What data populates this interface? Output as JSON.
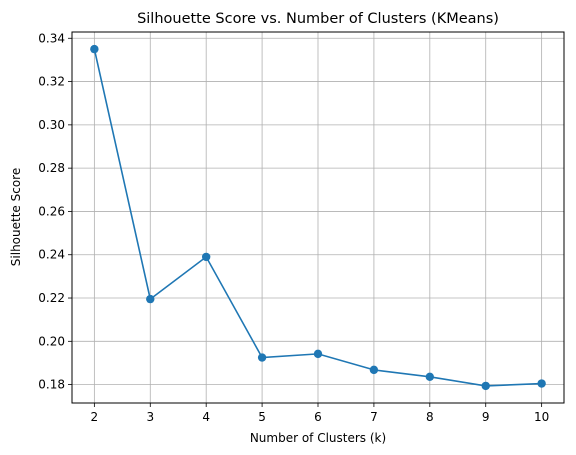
{
  "chart_data": {
    "type": "line",
    "title": "Silhouette Score vs. Number of Clusters (KMeans)",
    "xlabel": "Number of Clusters (k)",
    "ylabel": "Silhouette Score",
    "x": [
      2,
      3,
      4,
      5,
      6,
      7,
      8,
      9,
      10
    ],
    "series": [
      {
        "values": [
          0.335,
          0.2195,
          0.239,
          0.1925,
          0.1942,
          0.1868,
          0.1836,
          0.1794,
          0.1805
        ],
        "color": "#1f77b4",
        "marker": "circle"
      }
    ],
    "xticks": [
      "2",
      "3",
      "4",
      "5",
      "6",
      "7",
      "8",
      "9",
      "10"
    ],
    "yticks": [
      "0.18",
      "0.20",
      "0.22",
      "0.24",
      "0.26",
      "0.28",
      "0.30",
      "0.32",
      "0.34"
    ],
    "xlim": [
      1.6,
      10.4
    ],
    "ylim": [
      0.1715,
      0.3429
    ],
    "grid": true,
    "grid_color": "#b0b0b0"
  }
}
